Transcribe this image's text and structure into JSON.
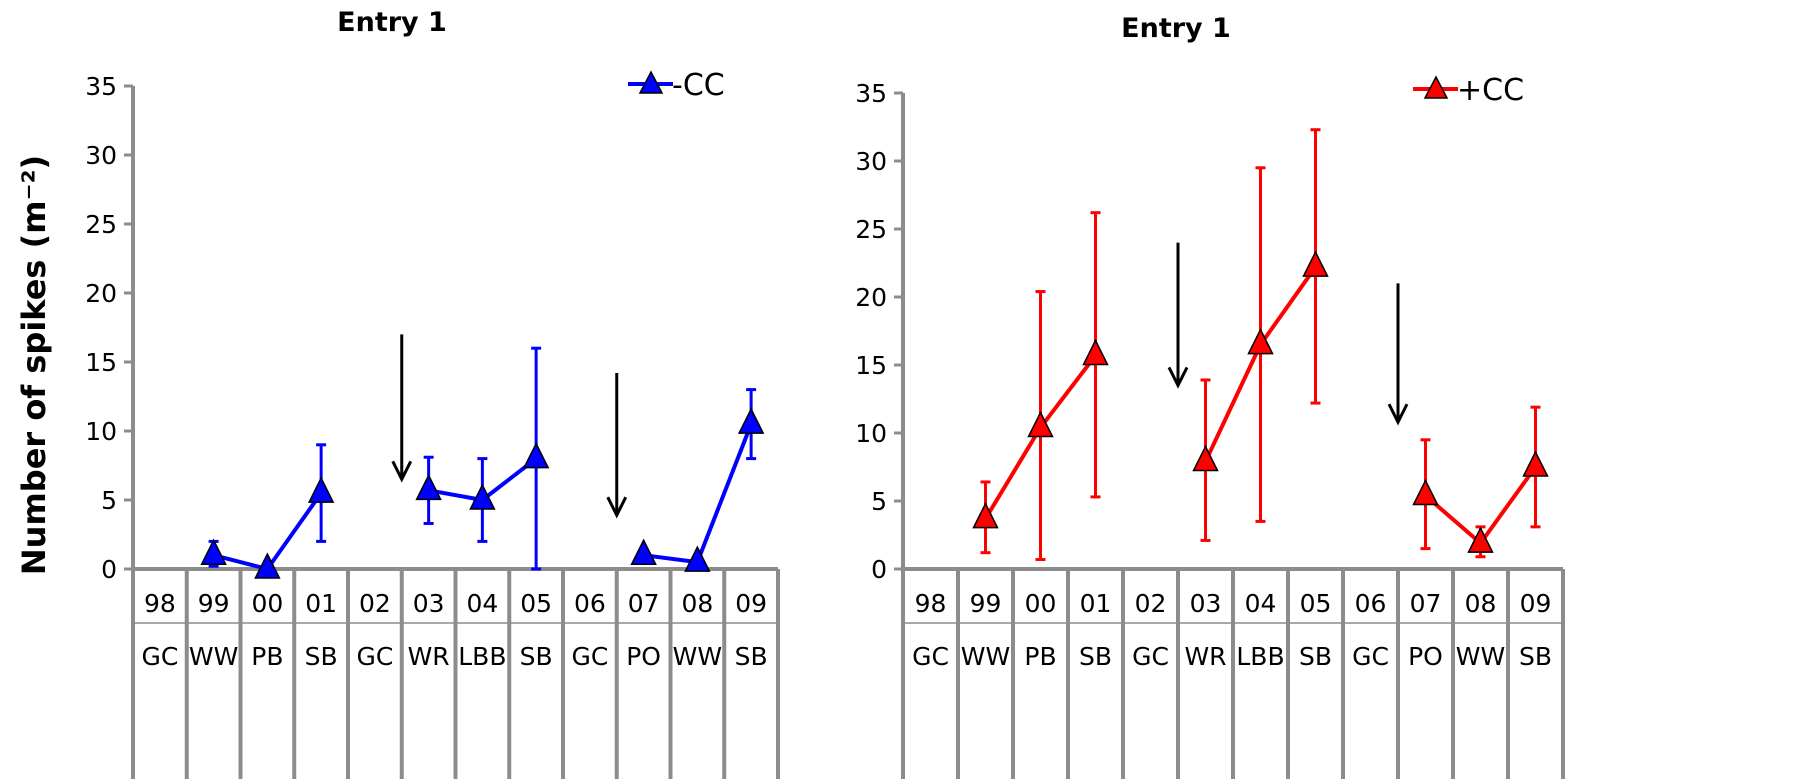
{
  "ylabel": "Number of spikes  (m⁻²)",
  "chart_data": [
    {
      "type": "line",
      "title": "Entry 1",
      "ylim": [
        0,
        35
      ],
      "yticks": [
        0,
        5,
        10,
        15,
        20,
        25,
        30,
        35
      ],
      "categories": [
        "98",
        "99",
        "00",
        "01",
        "02",
        "03",
        "04",
        "05",
        "06",
        "07",
        "08",
        "09"
      ],
      "crops": [
        "GC",
        "WW",
        "PB",
        "SB",
        "GC",
        "WR",
        "LBB",
        "SB",
        "GC",
        "PO",
        "WW",
        "SB"
      ],
      "legend_position": "top-right",
      "series": [
        {
          "name": "-CC",
          "color": "#0000ff",
          "values": [
            null,
            1.0,
            0.0,
            5.5,
            null,
            5.7,
            5.0,
            8.0,
            null,
            1.0,
            0.5,
            10.5
          ],
          "error_low": [
            null,
            0.2,
            0.0,
            2.0,
            null,
            3.3,
            2.0,
            0.0,
            null,
            1.0,
            0.5,
            8.0
          ],
          "error_high": [
            null,
            2.0,
            0.0,
            9.0,
            null,
            8.1,
            8.0,
            16.0,
            null,
            1.0,
            0.5,
            13.0
          ]
        }
      ],
      "arrows": [
        {
          "category": "03",
          "from": 17.0,
          "to": 6.5
        },
        {
          "category": "07",
          "from": 14.2,
          "to": 3.9
        }
      ]
    },
    {
      "type": "line",
      "title": "Entry 1",
      "ylim": [
        0,
        35
      ],
      "yticks": [
        0,
        5,
        10,
        15,
        20,
        25,
        30,
        35
      ],
      "categories": [
        "98",
        "99",
        "00",
        "01",
        "02",
        "03",
        "04",
        "05",
        "06",
        "07",
        "08",
        "09"
      ],
      "crops": [
        "GC",
        "WW",
        "PB",
        "SB",
        "GC",
        "WR",
        "LBB",
        "SB",
        "GC",
        "PO",
        "WW",
        "SB"
      ],
      "legend_position": "top-right",
      "series": [
        {
          "name": "+CC",
          "color": "#ff0000",
          "values": [
            null,
            3.7,
            10.4,
            15.7,
            null,
            7.9,
            16.5,
            22.2,
            null,
            5.4,
            1.9,
            7.5
          ],
          "error_low": [
            null,
            1.2,
            0.7,
            5.3,
            null,
            2.1,
            3.5,
            12.2,
            null,
            1.5,
            0.9,
            3.1
          ],
          "error_high": [
            null,
            6.4,
            20.4,
            26.2,
            null,
            13.9,
            29.5,
            32.3,
            null,
            9.5,
            3.1,
            11.9
          ]
        }
      ],
      "arrows": [
        {
          "category": "03",
          "from": 24.0,
          "to": 13.5
        },
        {
          "category": "07",
          "from": 21.0,
          "to": 10.8
        }
      ]
    }
  ]
}
